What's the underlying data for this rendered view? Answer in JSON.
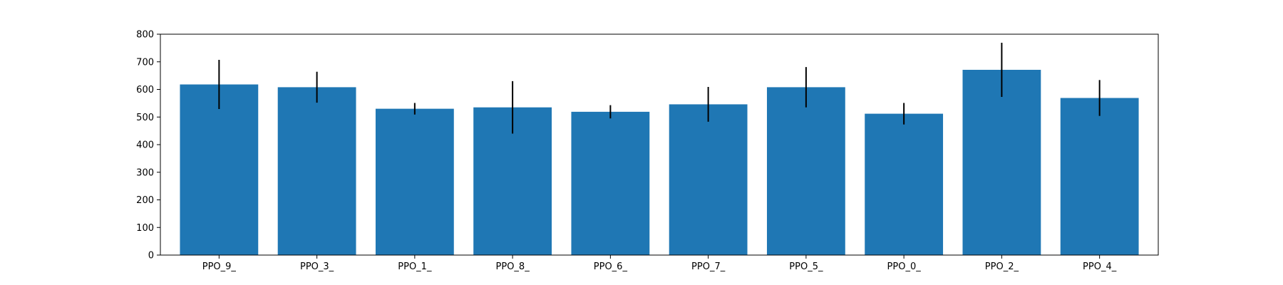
{
  "chart_data": {
    "type": "bar",
    "title": "",
    "xlabel": "",
    "ylabel": "",
    "categories": [
      "PPO_9_",
      "PPO_3_",
      "PPO_1_",
      "PPO_8_",
      "PPO_6_",
      "PPO_7_",
      "PPO_5_",
      "PPO_0_",
      "PPO_2_",
      "PPO_4_"
    ],
    "values": [
      618,
      608,
      530,
      535,
      519,
      546,
      608,
      512,
      671,
      569
    ],
    "errors": [
      89,
      56,
      21,
      95,
      24,
      63,
      73,
      39,
      98,
      65
    ],
    "ylim": [
      0,
      800
    ],
    "yticks": [
      0,
      100,
      200,
      300,
      400,
      500,
      600,
      700,
      800
    ],
    "grid": false,
    "legend": "none",
    "colors": {
      "bar": "#1f77b4",
      "error": "#000000",
      "axis": "#000000",
      "background": "#ffffff"
    }
  }
}
